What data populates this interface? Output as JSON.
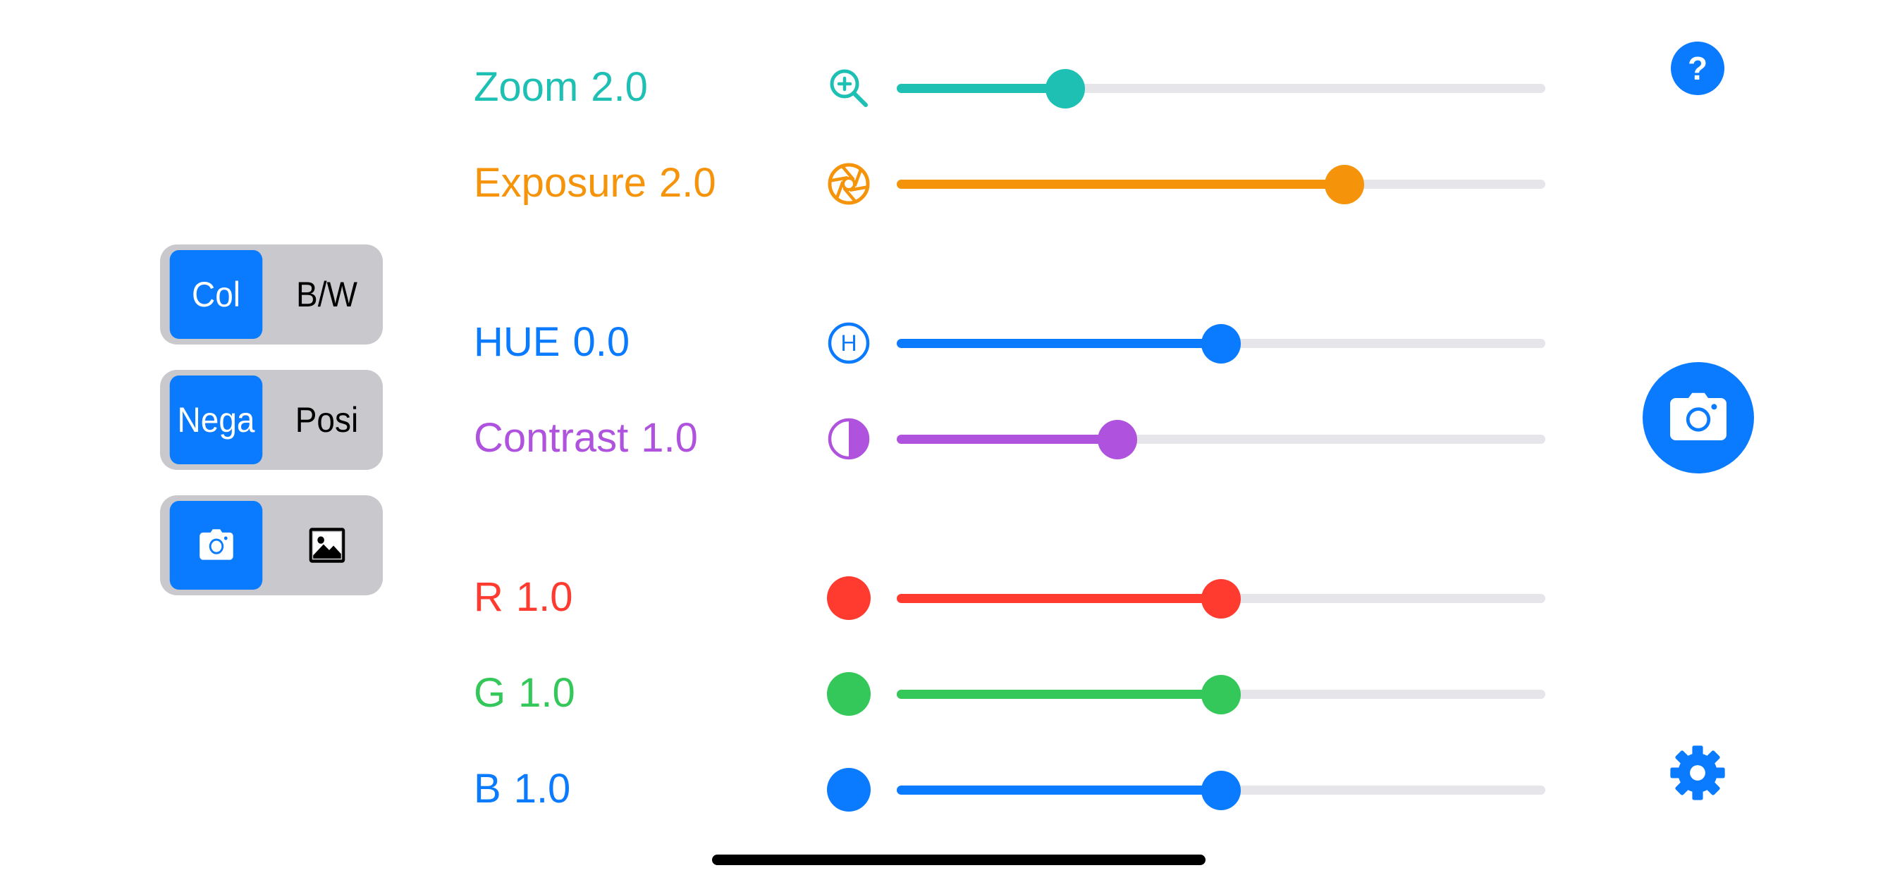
{
  "toggles": {
    "color_mode": {
      "left": "Col",
      "right": "B/W",
      "selected": "left"
    },
    "film_mode": {
      "left": "Nega",
      "right": "Posi",
      "selected": "left"
    },
    "source_mode": {
      "left_icon": "camera-icon",
      "right_icon": "photo-icon",
      "selected": "left"
    }
  },
  "sliders": [
    {
      "id": "zoom",
      "label": "Zoom",
      "value": "2.0",
      "color": "#1ec0b4",
      "icon": "zoom-in-icon",
      "position": 0.26
    },
    {
      "id": "exposure",
      "label": "Exposure",
      "value": "2.0",
      "color": "#f5940a",
      "icon": "aperture-icon",
      "position": 0.69
    },
    {
      "id": "hue",
      "label": "HUE",
      "value": "0.0",
      "color": "#0a7aff",
      "icon": "hue-h-icon",
      "position": 0.5
    },
    {
      "id": "contrast",
      "label": "Contrast",
      "value": "1.0",
      "color": "#af52de",
      "icon": "contrast-icon",
      "position": 0.34
    },
    {
      "id": "red",
      "label": "R",
      "value": "1.0",
      "color": "#ff3b30",
      "icon": "red-dot-icon",
      "position": 0.5
    },
    {
      "id": "green",
      "label": "G",
      "value": "1.0",
      "color": "#34c759",
      "icon": "green-dot-icon",
      "position": 0.5
    },
    {
      "id": "blue",
      "label": "B",
      "value": "1.0",
      "color": "#0a7aff",
      "icon": "blue-dot-icon",
      "position": 0.5
    }
  ],
  "right_controls": {
    "help_label": "?",
    "help_icon": "help-icon",
    "shutter_icon": "camera-icon",
    "settings_icon": "gear-icon"
  },
  "colors": {
    "accent": "#0a7aff",
    "segment_bg": "#c9c9cd",
    "track": "#e5e5ea"
  }
}
